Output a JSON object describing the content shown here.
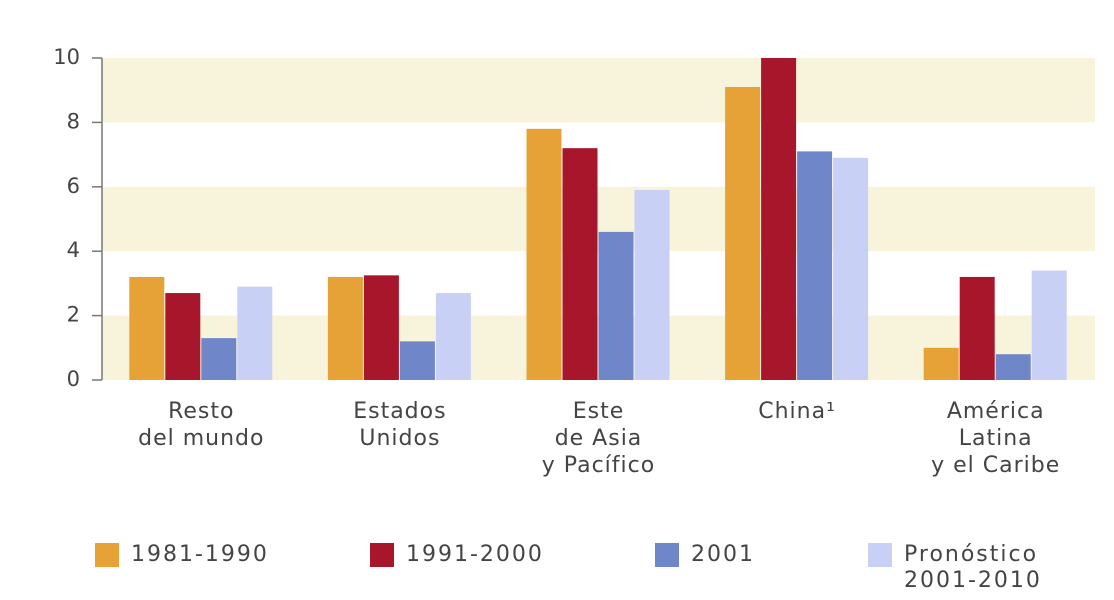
{
  "chart_data": {
    "type": "bar",
    "categories": [
      "Resto\ndel mundo",
      "Estados\nUnidos",
      "Este\nde Asia\ny Pacífico",
      "China¹",
      "América\nLatina\ny el Caribe"
    ],
    "series": [
      {
        "name": "1981-1990",
        "color": "#e6a236",
        "values": [
          3.2,
          3.2,
          7.8,
          9.1,
          1.0
        ]
      },
      {
        "name": "1991-2000",
        "color": "#a8162c",
        "values": [
          2.7,
          3.25,
          7.2,
          10.0,
          3.2
        ]
      },
      {
        "name": "2001",
        "color": "#6f86c9",
        "values": [
          1.3,
          1.2,
          4.6,
          7.1,
          0.8
        ]
      },
      {
        "name": "Pronóstico\n2001-2010",
        "color": "#c9d0f5",
        "values": [
          2.9,
          2.7,
          5.9,
          6.9,
          3.4
        ]
      }
    ],
    "ylim": [
      0,
      10
    ],
    "yticks": [
      0,
      2,
      4,
      6,
      8,
      10
    ],
    "bands": true
  }
}
